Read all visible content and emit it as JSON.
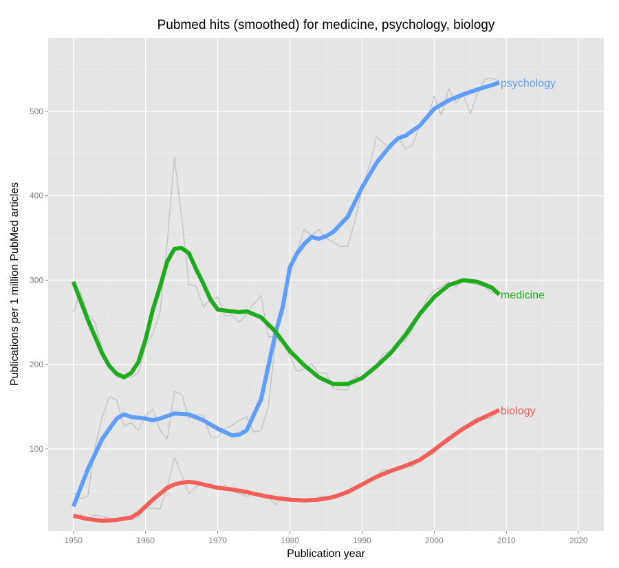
{
  "chart_data": {
    "type": "line",
    "title": "Pubmed hits (smoothed) for medicine, psychology, biology",
    "xlabel": "Publication year",
    "ylabel": "Publications per 1 million PubMed articles",
    "xlim": [
      1946.5,
      2023.5
    ],
    "ylim": [
      3,
      587
    ],
    "xticks": [
      1950,
      1960,
      1970,
      1980,
      1990,
      2000,
      2010,
      2020
    ],
    "yticks": [
      100,
      200,
      300,
      400,
      500
    ],
    "grid": true,
    "legend": "inline-end-labels",
    "colors": {
      "panel": "#e5e5e5",
      "grid_major": "#ffffff",
      "grid_minor": "#f2f2f2",
      "raw": "#bdbdbd"
    },
    "series": [
      {
        "name": "psychology",
        "color": "#619cff",
        "smoothed": {
          "x": [
            1950,
            1952,
            1954,
            1956,
            1957,
            1958,
            1960,
            1961,
            1962,
            1964,
            1966,
            1968,
            1970,
            1972,
            1973,
            1974,
            1976,
            1977,
            1978,
            1979,
            1980,
            1981,
            1982,
            1983,
            1984,
            1985,
            1986,
            1988,
            1990,
            1992,
            1994,
            1995,
            1996,
            1998,
            2000,
            2002,
            2004,
            2006,
            2008,
            2009
          ],
          "y": [
            32,
            76,
            112,
            136,
            141,
            138,
            136,
            134,
            136,
            142,
            141,
            134,
            124,
            116,
            117,
            122,
            159,
            198,
            237,
            268,
            315,
            332,
            343,
            351,
            349,
            352,
            357,
            375,
            410,
            439,
            460,
            468,
            471,
            483,
            503,
            513,
            520,
            526,
            531,
            534
          ]
        },
        "raw": {
          "x": [
            1950,
            1951,
            1952,
            1953,
            1954,
            1955,
            1956,
            1957,
            1958,
            1959,
            1960,
            1961,
            1962,
            1963,
            1964,
            1965,
            1966,
            1967,
            1968,
            1969,
            1970,
            1971,
            1972,
            1973,
            1974,
            1975,
            1976,
            1977,
            1978,
            1979,
            1980,
            1981,
            1982,
            1983,
            1984,
            1985,
            1986,
            1987,
            1988,
            1989,
            1990,
            1991,
            1992,
            1993,
            1994,
            1995,
            1996,
            1997,
            1998,
            1999,
            2000,
            2001,
            2002,
            2003,
            2004,
            2005,
            2006,
            2007,
            2008,
            2009
          ],
          "y": [
            48,
            41,
            44,
            102,
            138,
            162,
            158,
            127,
            131,
            122,
            140,
            147,
            122,
            112,
            168,
            165,
            136,
            141,
            140,
            114,
            114,
            124,
            128,
            134,
            138,
            120,
            122,
            150,
            225,
            270,
            315,
            335,
            360,
            353,
            360,
            350,
            345,
            340,
            340,
            370,
            408,
            435,
            470,
            462,
            456,
            470,
            455,
            460,
            484,
            490,
            518,
            495,
            527,
            510,
            520,
            497,
            522,
            538,
            539,
            536
          ]
        }
      },
      {
        "name": "medicine",
        "color": "#1faa1f",
        "smoothed": {
          "x": [
            1950,
            1952,
            1954,
            1955,
            1956,
            1957,
            1958,
            1959,
            1960,
            1961,
            1962,
            1963,
            1964,
            1965,
            1966,
            1967,
            1968,
            1969,
            1970,
            1972,
            1973,
            1974,
            1976,
            1978,
            1980,
            1982,
            1984,
            1986,
            1988,
            1990,
            1992,
            1994,
            1996,
            1998,
            2000,
            2002,
            2004,
            2006,
            2008,
            2009
          ],
          "y": [
            298,
            253,
            213,
            198,
            189,
            185,
            190,
            203,
            230,
            265,
            292,
            322,
            337,
            338,
            332,
            313,
            296,
            277,
            265,
            263,
            262,
            263,
            256,
            239,
            216,
            199,
            185,
            177,
            177,
            184,
            198,
            214,
            235,
            260,
            280,
            294,
            300,
            298,
            291,
            283
          ]
        },
        "raw": {
          "x": [
            1950,
            1951,
            1952,
            1953,
            1954,
            1955,
            1956,
            1957,
            1958,
            1959,
            1960,
            1961,
            1962,
            1963,
            1964,
            1965,
            1966,
            1967,
            1968,
            1969,
            1970,
            1971,
            1972,
            1973,
            1974,
            1975,
            1976,
            1977,
            1978,
            1979,
            1980,
            1981,
            1982,
            1983,
            1984,
            1985,
            1986,
            1987,
            1988,
            1989,
            1990,
            1991,
            1992,
            1993,
            1994,
            1995,
            1996,
            1997,
            1998,
            1999,
            2000,
            2001,
            2002,
            2003,
            2004,
            2005,
            2006,
            2007,
            2008,
            2009
          ],
          "y": [
            262,
            286,
            260,
            250,
            218,
            200,
            185,
            185,
            185,
            190,
            222,
            236,
            262,
            344,
            445,
            375,
            295,
            293,
            268,
            277,
            280,
            258,
            258,
            250,
            260,
            272,
            282,
            233,
            233,
            225,
            210,
            192,
            195,
            201,
            190,
            190,
            172,
            170,
            170,
            187,
            181,
            192,
            200,
            213,
            216,
            227,
            228,
            242,
            260,
            278,
            288,
            292,
            298,
            292,
            300,
            296,
            295,
            292,
            285,
            283
          ]
        }
      },
      {
        "name": "biology",
        "color": "#f35e5a",
        "smoothed": {
          "x": [
            1950,
            1952,
            1954,
            1956,
            1958,
            1959,
            1960,
            1961,
            1962,
            1963,
            1964,
            1965,
            1966,
            1967,
            1968,
            1969,
            1970,
            1972,
            1974,
            1976,
            1978,
            1980,
            1982,
            1984,
            1986,
            1988,
            1990,
            1992,
            1994,
            1996,
            1998,
            2000,
            2002,
            2004,
            2006,
            2008,
            2009
          ],
          "y": [
            21,
            17,
            15,
            16,
            19,
            24,
            32,
            40,
            47,
            54,
            58,
            60,
            61,
            60,
            58,
            56,
            54,
            52,
            49,
            45,
            42,
            40,
            39,
            40,
            43,
            49,
            58,
            67,
            74,
            80,
            87,
            99,
            112,
            124,
            134,
            142,
            146
          ]
        },
        "raw": {
          "x": [
            1950,
            1951,
            1952,
            1953,
            1954,
            1955,
            1956,
            1957,
            1958,
            1959,
            1960,
            1961,
            1962,
            1963,
            1964,
            1965,
            1966,
            1967,
            1968,
            1969,
            1970,
            1971,
            1972,
            1973,
            1974,
            1975,
            1976,
            1977,
            1978,
            1979,
            1980,
            1981,
            1982,
            1983,
            1984,
            1985,
            1986,
            1987,
            1988,
            1989,
            1990,
            1991,
            1992,
            1993,
            1994,
            1995,
            1996,
            1997,
            1998,
            1999,
            2000,
            2001,
            2002,
            2003,
            2004,
            2005,
            2006,
            2007,
            2008,
            2009
          ],
          "y": [
            18,
            22,
            18,
            22,
            20,
            18,
            17,
            19,
            16,
            19,
            30,
            30,
            29,
            55,
            90,
            70,
            47,
            55,
            59,
            54,
            55,
            57,
            50,
            47,
            44,
            47,
            48,
            44,
            34,
            43,
            40,
            41,
            38,
            40,
            43,
            44,
            41,
            46,
            50,
            55,
            56,
            62,
            68,
            76,
            74,
            75,
            80,
            79,
            87,
            90,
            95,
            107,
            113,
            118,
            123,
            132,
            137,
            135,
            137,
            146
          ]
        }
      }
    ]
  }
}
